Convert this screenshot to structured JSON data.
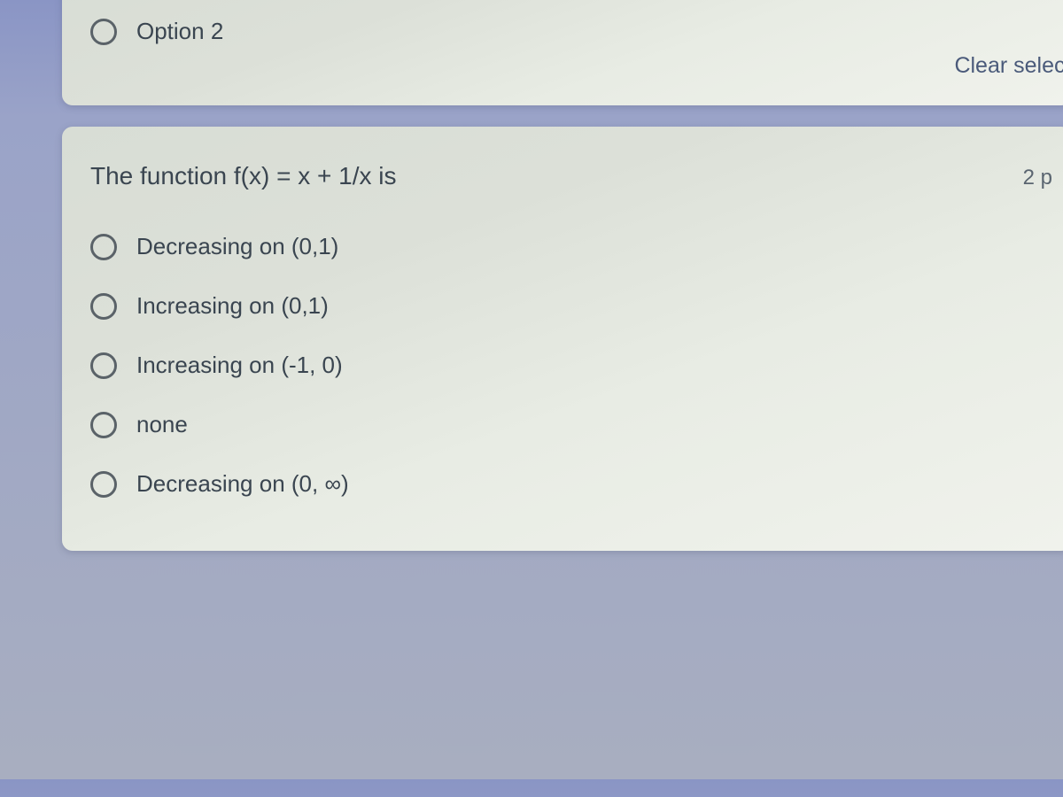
{
  "card_top": {
    "option_label": "Option 2",
    "clear_selection_label": "Clear selecti"
  },
  "card_bottom": {
    "question_text": "The function f(x) = x + 1/x is",
    "points_label": "2 p",
    "options": [
      {
        "label": "Decreasing on (0,1)"
      },
      {
        "label": "Increasing on (0,1)"
      },
      {
        "label": "Increasing on (-1, 0)"
      },
      {
        "label": "none"
      },
      {
        "label": "Decreasing on (0, ∞)"
      }
    ]
  },
  "styling": {
    "background_gradient_top": "#8a95c5",
    "background_gradient_bottom": "#a8aec0",
    "card_background_light": "#f0f2ec",
    "card_background_dark": "#d8ddd5",
    "text_color": "#3a4550",
    "radio_border_color": "#5a6268",
    "clear_selection_color": "#4a5a7a",
    "card_border_radius": 12,
    "radio_size": 30,
    "title_fontsize": 28,
    "option_fontsize": 26,
    "points_fontsize": 24
  }
}
